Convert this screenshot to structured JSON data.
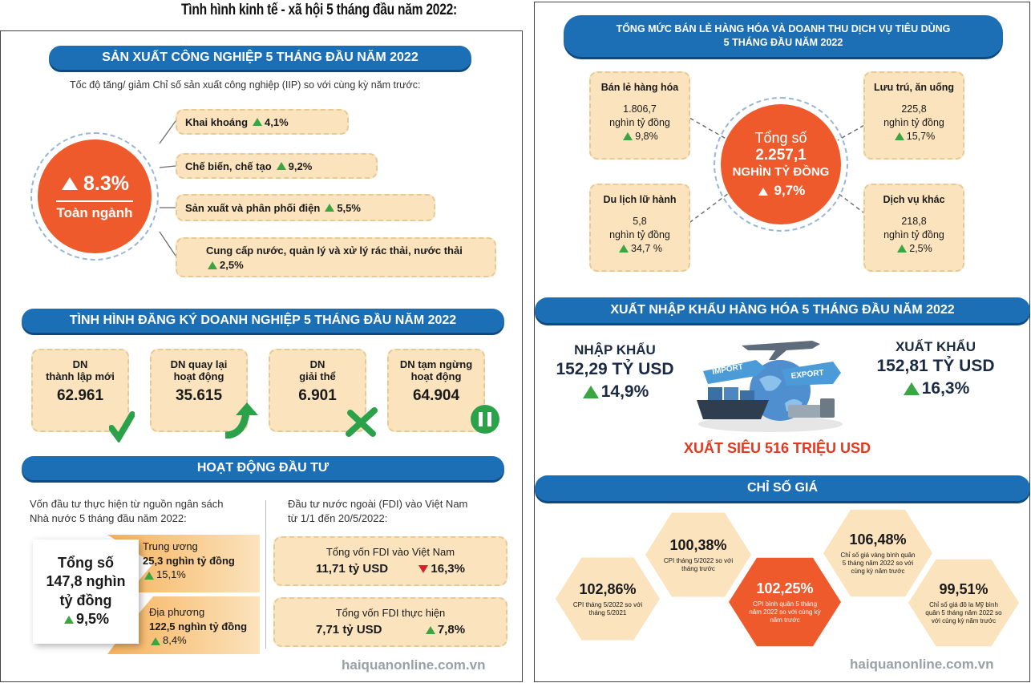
{
  "header": {
    "title": "Tình hình kinh tế - xã hội 5 tháng đầu năm 2022:"
  },
  "industry": {
    "banner": "SẢN XUẤT CÔNG NGHIỆP 5 THÁNG ĐẦU NĂM 2022",
    "subtitle": "Tốc độ tăng/ giảm Chỉ số sản xuất công nghiệp (IIP) so với cùng kỳ năm trước:",
    "total_value": "8.3%",
    "total_label": "Toàn ngành",
    "items": [
      {
        "label": "Khai khoáng",
        "value": "4,1%"
      },
      {
        "label": "Chế biến, chế tạo",
        "value": "9,2%"
      },
      {
        "label": "Sản xuất và phân phối điện",
        "value": "5,5%"
      },
      {
        "label": "Cung cấp nước, quản lý và xử lý rác thải, nước thải",
        "value": "2,5%"
      }
    ]
  },
  "enterprise": {
    "banner": "TÌNH HÌNH ĐĂNG KÝ DOANH NGHIỆP 5 THÁNG ĐẦU NĂM 2022",
    "cards": [
      {
        "line1": "DN",
        "line2": "thành lập mới",
        "value": "62.961",
        "icon": "checkmark-icon"
      },
      {
        "line1": "DN quay lại",
        "line2": "hoạt động",
        "value": "35.615",
        "icon": "return-arrow-icon"
      },
      {
        "line1": "DN",
        "line2": "giải thể",
        "value": "6.901",
        "icon": "x-icon"
      },
      {
        "line1": "DN tạm ngừng",
        "line2": "hoạt động",
        "value": "64.904",
        "icon": "pause-icon"
      }
    ]
  },
  "investment": {
    "banner": "HOẠT ĐỘNG ĐẦU TƯ",
    "state_caption_1": "Vốn đầu tư thực hiện từ nguồn ngân sách",
    "state_caption_2": "Nhà nước 5 tháng đầu năm 2022:",
    "total_label": "Tổng số",
    "total_value_1": "147,8 nghìn",
    "total_value_2": "tỷ đồng",
    "total_growth": "9,5%",
    "central_label": "Trung ương",
    "central_value": "25,3 nghìn tỷ đồng",
    "central_growth": "15,1%",
    "local_label": "Địa phương",
    "local_value": "122,5 nghìn tỷ đồng",
    "local_growth": "8,4%",
    "fdi_caption_1": "Đầu tư nước ngoài (FDI) vào Việt Nam",
    "fdi_caption_2": "từ 1/1 đến 20/5/2022:",
    "fdi_registered_label": "Tổng vốn FDI vào Việt Nam",
    "fdi_registered_value": "11,71 tỷ USD",
    "fdi_registered_change": "16,3%",
    "fdi_realized_label": "Tổng vốn FDI thực hiện",
    "fdi_realized_value": "7,71 tỷ USD",
    "fdi_realized_change": "7,8%"
  },
  "retail": {
    "banner_1": "TỔNG MỨC BÁN LẺ HÀNG HÓA VÀ DOANH THU DỊCH VỤ TIÊU DÙNG",
    "banner_2": "5 THÁNG ĐẦU NĂM 2022",
    "center_label": "Tổng số",
    "center_value": "2.257,1",
    "center_unit": "NGHÌN TỶ ĐỒNG",
    "center_growth": "9,7%",
    "items": [
      {
        "title": "Bán lẻ hàng hóa",
        "value": "1.806,7",
        "unit": "nghìn tỷ đồng",
        "growth": "9,8%"
      },
      {
        "title": "Lưu trú, ăn uống",
        "value": "225,8",
        "unit": "nghìn tỷ đồng",
        "growth": "15,7%"
      },
      {
        "title": "Du lịch lữ hành",
        "value": "5,8",
        "unit": "nghìn tỷ đồng",
        "growth": "34,7 %"
      },
      {
        "title": "Dịch vụ khác",
        "value": "218,8",
        "unit": "nghìn tỷ đồng",
        "growth": "2,5%"
      }
    ]
  },
  "trade": {
    "banner": "XUẤT NHẬP KHẨU HÀNG HÓA 5 THÁNG ĐẦU NĂM 2022",
    "import_label": "NHẬP KHẨU",
    "import_value": "152,29 TỶ USD",
    "import_growth": "14,9%",
    "export_label": "XUẤT KHẨU",
    "export_value": "152,81 TỶ USD",
    "export_growth": "16,3%",
    "surplus": "XUẤT SIÊU 516 TRIỆU USD",
    "sign_left": "IMPORT",
    "sign_right": "EXPORT"
  },
  "prices": {
    "banner": "CHỈ SỐ GIÁ",
    "hexes": [
      {
        "value": "102,86%",
        "caption": "CPI tháng 5/2022 so với tháng 5/2021"
      },
      {
        "value": "100,38%",
        "caption": "CPI tháng 5/2022 so với tháng trước"
      },
      {
        "value": "102,25%",
        "caption": "CPI bình quân 5 tháng năm 2022 so với cùng kỳ năm trước"
      },
      {
        "value": "106,48%",
        "caption": "Chỉ số giá vàng bình quân 5 tháng năm 2022 so với cùng kỳ năm trước"
      },
      {
        "value": "99,51%",
        "caption": "Chỉ số giá đô la Mỹ bình quân 5 tháng năm 2022 so với cùng kỳ năm trước"
      }
    ]
  },
  "watermark": "haiquanonline.com.vn",
  "colors": {
    "blue": "#1d6fb5",
    "orange": "#ee5a2b",
    "cream": "#fbe3bd",
    "green": "#3aa541",
    "red": "#d6202a"
  }
}
